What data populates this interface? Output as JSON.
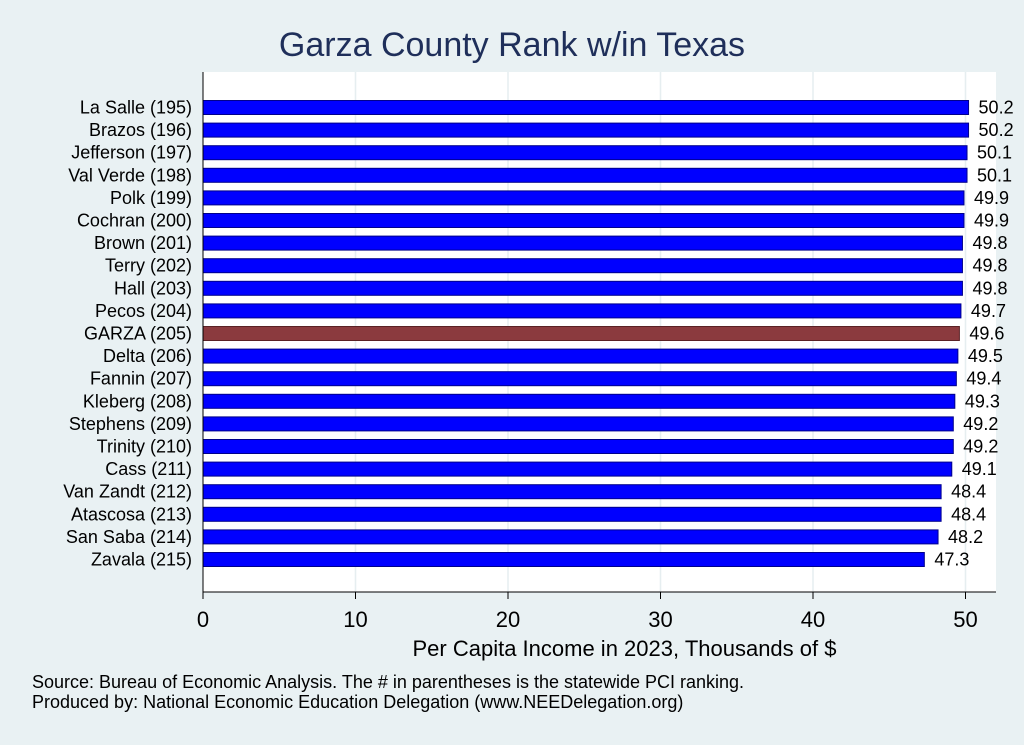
{
  "colors": {
    "background": "#e9f1f3",
    "plot_background": "#ffffff",
    "bar": "#0000ff",
    "highlight_bar": "#8b3a3e",
    "title": "#1f2f5a",
    "grid": "#e6eef0"
  },
  "footer": {
    "source": "Source: Bureau of Economic Analysis. The # in parentheses is the statewide PCI ranking.",
    "produced_by": "Produced by: National Economic Education Delegation (www.NEEDelegation.org)"
  },
  "chart_data": {
    "type": "bar",
    "orientation": "horizontal",
    "title": "Garza County Rank w/in Texas",
    "xlabel": "Per Capita Income in 2023, Thousands of $",
    "ylabel": "",
    "xlim": [
      0,
      52
    ],
    "xticks": [
      0,
      10,
      20,
      30,
      40,
      50
    ],
    "grid": true,
    "highlight_category": "GARZA (205)",
    "categories": [
      "La Salle (195)",
      "Brazos (196)",
      "Jefferson (197)",
      "Val Verde (198)",
      "Polk (199)",
      "Cochran (200)",
      "Brown (201)",
      "Terry (202)",
      "Hall (203)",
      "Pecos (204)",
      "GARZA (205)",
      "Delta (206)",
      "Fannin (207)",
      "Kleberg (208)",
      "Stephens (209)",
      "Trinity (210)",
      "Cass (211)",
      "Van Zandt (212)",
      "Atascosa (213)",
      "San Saba (214)",
      "Zavala (215)"
    ],
    "values": [
      50.2,
      50.2,
      50.1,
      50.1,
      49.9,
      49.9,
      49.8,
      49.8,
      49.8,
      49.7,
      49.6,
      49.5,
      49.4,
      49.3,
      49.2,
      49.2,
      49.1,
      48.4,
      48.4,
      48.2,
      47.3
    ],
    "data_labels": [
      "50.2",
      "50.2",
      "50.1",
      "50.1",
      "49.9",
      "49.9",
      "49.8",
      "49.8",
      "49.8",
      "49.7",
      "49.6",
      "49.5",
      "49.4",
      "49.3",
      "49.2",
      "49.2",
      "49.1",
      "48.4",
      "48.4",
      "48.2",
      "47.3"
    ]
  }
}
